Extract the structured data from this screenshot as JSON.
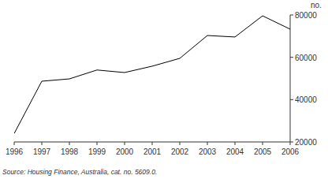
{
  "chart_data": {
    "type": "line",
    "ylabel": "no.",
    "annotations": [
      "Source: Housing Finance, Australia, cat. no. 5609.0."
    ],
    "x": [
      1996,
      1997,
      1998,
      1999,
      2000,
      2001,
      2002,
      2003,
      2004,
      2005,
      2006
    ],
    "values": [
      24000,
      48700,
      49800,
      54000,
      52800,
      55800,
      59500,
      70300,
      69600,
      79600,
      73300
    ],
    "color": "#000000",
    "xlim": [
      1996,
      2006
    ],
    "xticks": [
      1996,
      1997,
      1998,
      1999,
      2000,
      2001,
      2002,
      2003,
      2004,
      2005,
      2006
    ],
    "ylim": [
      20000,
      80000
    ],
    "yticks": [
      20000,
      40000,
      60000,
      80000
    ],
    "grid": false
  }
}
